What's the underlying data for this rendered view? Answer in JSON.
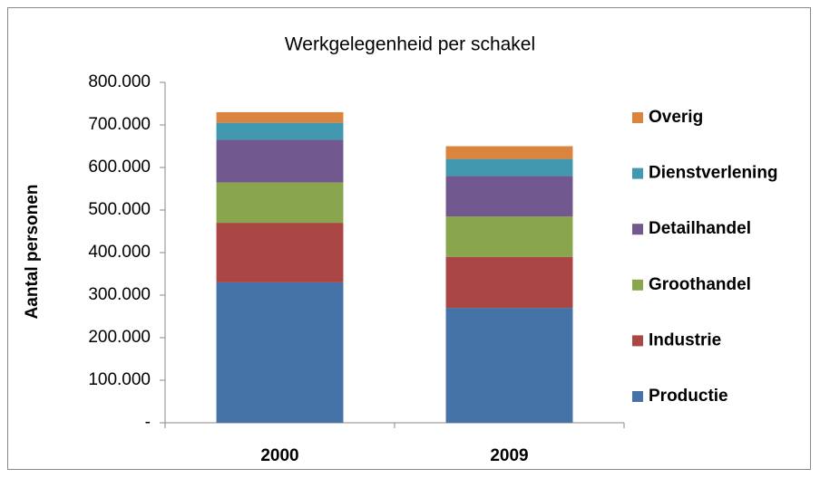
{
  "chart_data": {
    "type": "stacked_bar",
    "title": "Werkgelegenheid per schakel",
    "y_label": "Aantal personen",
    "categories": [
      "2000",
      "2009"
    ],
    "series": [
      {
        "name": "Productie",
        "color": "#4572a7",
        "values": [
          330000,
          270000
        ]
      },
      {
        "name": "Industrie",
        "color": "#aa4643",
        "values": [
          140000,
          120000
        ]
      },
      {
        "name": "Groothandel",
        "color": "#89a54e",
        "values": [
          95000,
          95000
        ]
      },
      {
        "name": "Detailhandel",
        "color": "#71588f",
        "values": [
          100000,
          95000
        ]
      },
      {
        "name": "Dienstverlening",
        "color": "#4198af",
        "values": [
          40000,
          40000
        ]
      },
      {
        "name": "Overig",
        "color": "#db843d",
        "values": [
          25000,
          30000
        ]
      }
    ],
    "ylim": [
      0,
      800000
    ],
    "yticks": [
      {
        "value": 0,
        "label": "-"
      },
      {
        "value": 100000,
        "label": "100.000"
      },
      {
        "value": 200000,
        "label": "200.000"
      },
      {
        "value": 300000,
        "label": "300.000"
      },
      {
        "value": 400000,
        "label": "400.000"
      },
      {
        "value": 500000,
        "label": "500.000"
      },
      {
        "value": 600000,
        "label": "600.000"
      },
      {
        "value": 700000,
        "label": "700.000"
      },
      {
        "value": 800000,
        "label": "800.000"
      }
    ],
    "legend": "right",
    "grid": false
  }
}
